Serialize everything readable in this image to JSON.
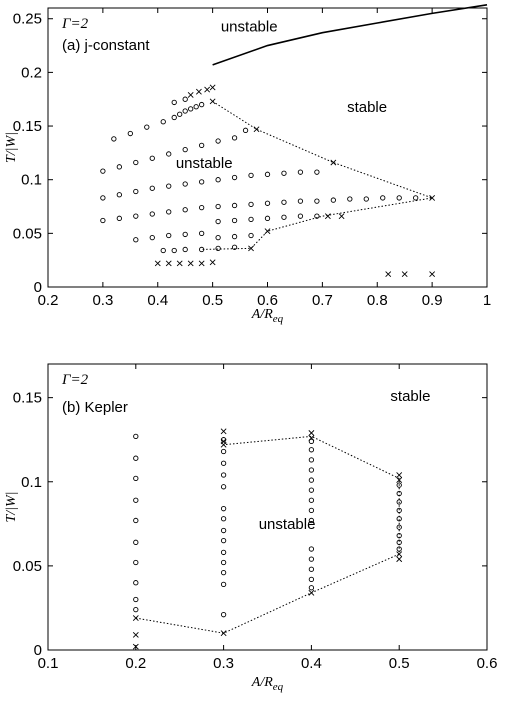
{
  "chart_data": [
    {
      "type": "scatter",
      "title": "",
      "panel_label": "(a) j-constant",
      "gamma_label": "Γ=2",
      "xlabel_main": "A/R",
      "xlabel_sub": "eq",
      "ylabel": "T/|W|",
      "xlim": [
        0.2,
        1.0
      ],
      "ylim": [
        0,
        0.26
      ],
      "xticks": [
        0.2,
        0.3,
        0.4,
        0.5,
        0.6,
        0.7,
        0.8,
        0.9,
        1.0
      ],
      "xtick_labels": [
        "0.2",
        "0.3",
        "0.4",
        "0.5",
        "0.6",
        "0.7",
        "0.8",
        "0.9",
        "1"
      ],
      "yticks": [
        0,
        0.05,
        0.1,
        0.15,
        0.2,
        0.25
      ],
      "ytick_labels": [
        "0",
        "0.05",
        "0.1",
        "0.15",
        "0.2",
        "0.25"
      ],
      "annotations": [
        {
          "text": "unstable",
          "x": 0.515,
          "y": 0.238
        },
        {
          "text": "stable",
          "x": 0.745,
          "y": 0.163
        },
        {
          "text": "unstable",
          "x": 0.433,
          "y": 0.111
        }
      ],
      "boundary_solid": [
        [
          0.5,
          0.207
        ],
        [
          0.6,
          0.225
        ],
        [
          0.7,
          0.237
        ],
        [
          0.8,
          0.246
        ],
        [
          0.9,
          0.255
        ],
        [
          1.0,
          0.263
        ]
      ],
      "boundary_dotted": [
        [
          0.5,
          0.173
        ],
        [
          0.58,
          0.147
        ],
        [
          0.72,
          0.116
        ],
        [
          0.9,
          0.083
        ],
        [
          0.7,
          0.066
        ],
        [
          0.6,
          0.052
        ],
        [
          0.57,
          0.036
        ],
        [
          0.48,
          0.035
        ]
      ],
      "stable_points": [
        {
          "x": 0.3,
          "y": 0.062
        },
        {
          "x": 0.33,
          "y": 0.064
        },
        {
          "x": 0.36,
          "y": 0.066
        },
        {
          "x": 0.39,
          "y": 0.068
        },
        {
          "x": 0.42,
          "y": 0.07
        },
        {
          "x": 0.45,
          "y": 0.072
        },
        {
          "x": 0.48,
          "y": 0.074
        },
        {
          "x": 0.51,
          "y": 0.075
        },
        {
          "x": 0.54,
          "y": 0.076
        },
        {
          "x": 0.57,
          "y": 0.077
        },
        {
          "x": 0.6,
          "y": 0.078
        },
        {
          "x": 0.63,
          "y": 0.079
        },
        {
          "x": 0.66,
          "y": 0.08
        },
        {
          "x": 0.69,
          "y": 0.08
        },
        {
          "x": 0.72,
          "y": 0.081
        },
        {
          "x": 0.75,
          "y": 0.082
        },
        {
          "x": 0.78,
          "y": 0.082
        },
        {
          "x": 0.81,
          "y": 0.083
        },
        {
          "x": 0.84,
          "y": 0.083
        },
        {
          "x": 0.87,
          "y": 0.083
        },
        {
          "x": 0.3,
          "y": 0.083
        },
        {
          "x": 0.33,
          "y": 0.086
        },
        {
          "x": 0.36,
          "y": 0.089
        },
        {
          "x": 0.39,
          "y": 0.092
        },
        {
          "x": 0.42,
          "y": 0.094
        },
        {
          "x": 0.45,
          "y": 0.096
        },
        {
          "x": 0.48,
          "y": 0.098
        },
        {
          "x": 0.51,
          "y": 0.1
        },
        {
          "x": 0.54,
          "y": 0.102
        },
        {
          "x": 0.57,
          "y": 0.104
        },
        {
          "x": 0.6,
          "y": 0.105
        },
        {
          "x": 0.63,
          "y": 0.106
        },
        {
          "x": 0.66,
          "y": 0.107
        },
        {
          "x": 0.69,
          "y": 0.107
        },
        {
          "x": 0.3,
          "y": 0.108
        },
        {
          "x": 0.33,
          "y": 0.112
        },
        {
          "x": 0.36,
          "y": 0.116
        },
        {
          "x": 0.39,
          "y": 0.12
        },
        {
          "x": 0.42,
          "y": 0.124
        },
        {
          "x": 0.45,
          "y": 0.128
        },
        {
          "x": 0.48,
          "y": 0.132
        },
        {
          "x": 0.51,
          "y": 0.136
        },
        {
          "x": 0.54,
          "y": 0.139
        },
        {
          "x": 0.32,
          "y": 0.138
        },
        {
          "x": 0.35,
          "y": 0.143
        },
        {
          "x": 0.38,
          "y": 0.149
        },
        {
          "x": 0.41,
          "y": 0.154
        },
        {
          "x": 0.43,
          "y": 0.158
        },
        {
          "x": 0.44,
          "y": 0.161
        },
        {
          "x": 0.45,
          "y": 0.164
        },
        {
          "x": 0.46,
          "y": 0.166
        },
        {
          "x": 0.47,
          "y": 0.168
        },
        {
          "x": 0.48,
          "y": 0.17
        },
        {
          "x": 0.43,
          "y": 0.172
        },
        {
          "x": 0.45,
          "y": 0.175
        },
        {
          "x": 0.56,
          "y": 0.146
        },
        {
          "x": 0.36,
          "y": 0.044
        },
        {
          "x": 0.39,
          "y": 0.046
        },
        {
          "x": 0.42,
          "y": 0.048
        },
        {
          "x": 0.45,
          "y": 0.049
        },
        {
          "x": 0.48,
          "y": 0.05
        },
        {
          "x": 0.51,
          "y": 0.061
        },
        {
          "x": 0.54,
          "y": 0.062
        },
        {
          "x": 0.57,
          "y": 0.063
        },
        {
          "x": 0.6,
          "y": 0.064
        },
        {
          "x": 0.63,
          "y": 0.065
        },
        {
          "x": 0.66,
          "y": 0.066
        },
        {
          "x": 0.69,
          "y": 0.066
        },
        {
          "x": 0.41,
          "y": 0.034
        },
        {
          "x": 0.43,
          "y": 0.034
        },
        {
          "x": 0.45,
          "y": 0.035
        },
        {
          "x": 0.48,
          "y": 0.035
        },
        {
          "x": 0.51,
          "y": 0.046
        },
        {
          "x": 0.54,
          "y": 0.047
        },
        {
          "x": 0.57,
          "y": 0.048
        },
        {
          "x": 0.51,
          "y": 0.036
        },
        {
          "x": 0.54,
          "y": 0.037
        }
      ],
      "unstable_points": [
        {
          "x": 0.46,
          "y": 0.179
        },
        {
          "x": 0.475,
          "y": 0.182
        },
        {
          "x": 0.49,
          "y": 0.184
        },
        {
          "x": 0.5,
          "y": 0.186
        },
        {
          "x": 0.5,
          "y": 0.173
        },
        {
          "x": 0.58,
          "y": 0.147
        },
        {
          "x": 0.72,
          "y": 0.116
        },
        {
          "x": 0.9,
          "y": 0.083
        },
        {
          "x": 0.71,
          "y": 0.066
        },
        {
          "x": 0.735,
          "y": 0.066
        },
        {
          "x": 0.6,
          "y": 0.052
        },
        {
          "x": 0.57,
          "y": 0.036
        },
        {
          "x": 0.4,
          "y": 0.022
        },
        {
          "x": 0.42,
          "y": 0.022
        },
        {
          "x": 0.44,
          "y": 0.022
        },
        {
          "x": 0.46,
          "y": 0.022
        },
        {
          "x": 0.48,
          "y": 0.022
        },
        {
          "x": 0.5,
          "y": 0.023
        },
        {
          "x": 0.82,
          "y": 0.012
        },
        {
          "x": 0.85,
          "y": 0.012
        },
        {
          "x": 0.9,
          "y": 0.012
        }
      ]
    },
    {
      "type": "scatter",
      "title": "",
      "panel_label": "(b) Kepler",
      "gamma_label": "Γ=2",
      "xlabel_main": "A/R",
      "xlabel_sub": "eq",
      "ylabel": "T/|W|",
      "xlim": [
        0.1,
        0.6
      ],
      "ylim": [
        0,
        0.17
      ],
      "xticks": [
        0.1,
        0.2,
        0.3,
        0.4,
        0.5,
        0.6
      ],
      "xtick_labels": [
        "0.1",
        "0.2",
        "0.3",
        "0.4",
        "0.5",
        "0.6"
      ],
      "yticks": [
        0,
        0.05,
        0.1,
        0.15
      ],
      "ytick_labels": [
        "0",
        "0.05",
        "0.1",
        "0.15"
      ],
      "annotations": [
        {
          "text": "stable",
          "x": 0.49,
          "y": 0.148
        },
        {
          "text": "unstable",
          "x": 0.34,
          "y": 0.072
        }
      ],
      "boundary_dotted": [
        [
          0.2,
          0.019
        ],
        [
          0.3,
          0.01
        ],
        [
          0.4,
          0.034
        ],
        [
          0.5,
          0.057
        ],
        [
          0.5,
          0.102
        ],
        [
          0.4,
          0.127
        ],
        [
          0.3,
          0.122
        ]
      ],
      "stable_points": [
        {
          "x": 0.2,
          "y": 0.127
        },
        {
          "x": 0.2,
          "y": 0.114
        },
        {
          "x": 0.2,
          "y": 0.102
        },
        {
          "x": 0.2,
          "y": 0.089
        },
        {
          "x": 0.2,
          "y": 0.077
        },
        {
          "x": 0.2,
          "y": 0.064
        },
        {
          "x": 0.2,
          "y": 0.052
        },
        {
          "x": 0.2,
          "y": 0.04
        },
        {
          "x": 0.2,
          "y": 0.03
        },
        {
          "x": 0.2,
          "y": 0.024
        },
        {
          "x": 0.3,
          "y": 0.125
        },
        {
          "x": 0.3,
          "y": 0.118
        },
        {
          "x": 0.3,
          "y": 0.111
        },
        {
          "x": 0.3,
          "y": 0.104
        },
        {
          "x": 0.3,
          "y": 0.097
        },
        {
          "x": 0.3,
          "y": 0.084
        },
        {
          "x": 0.3,
          "y": 0.078
        },
        {
          "x": 0.3,
          "y": 0.071
        },
        {
          "x": 0.3,
          "y": 0.065
        },
        {
          "x": 0.3,
          "y": 0.058
        },
        {
          "x": 0.3,
          "y": 0.052
        },
        {
          "x": 0.3,
          "y": 0.046
        },
        {
          "x": 0.3,
          "y": 0.039
        },
        {
          "x": 0.3,
          "y": 0.021
        },
        {
          "x": 0.4,
          "y": 0.124
        },
        {
          "x": 0.4,
          "y": 0.119
        },
        {
          "x": 0.4,
          "y": 0.113
        },
        {
          "x": 0.4,
          "y": 0.107
        },
        {
          "x": 0.4,
          "y": 0.101
        },
        {
          "x": 0.4,
          "y": 0.095
        },
        {
          "x": 0.4,
          "y": 0.089
        },
        {
          "x": 0.4,
          "y": 0.083
        },
        {
          "x": 0.4,
          "y": 0.077
        },
        {
          "x": 0.4,
          "y": 0.06
        },
        {
          "x": 0.4,
          "y": 0.054
        },
        {
          "x": 0.4,
          "y": 0.048
        },
        {
          "x": 0.4,
          "y": 0.042
        },
        {
          "x": 0.4,
          "y": 0.037
        },
        {
          "x": 0.5,
          "y": 0.098
        },
        {
          "x": 0.5,
          "y": 0.093
        },
        {
          "x": 0.5,
          "y": 0.088
        },
        {
          "x": 0.5,
          "y": 0.083
        },
        {
          "x": 0.5,
          "y": 0.078
        },
        {
          "x": 0.5,
          "y": 0.073
        },
        {
          "x": 0.5,
          "y": 0.068
        },
        {
          "x": 0.5,
          "y": 0.064
        },
        {
          "x": 0.5,
          "y": 0.06
        }
      ],
      "unstable_points": [
        {
          "x": 0.2,
          "y": 0.019
        },
        {
          "x": 0.2,
          "y": 0.009
        },
        {
          "x": 0.2,
          "y": 0.002
        },
        {
          "x": 0.3,
          "y": 0.13
        },
        {
          "x": 0.3,
          "y": 0.124
        },
        {
          "x": 0.3,
          "y": 0.122
        },
        {
          "x": 0.3,
          "y": 0.01
        },
        {
          "x": 0.4,
          "y": 0.129
        },
        {
          "x": 0.4,
          "y": 0.126
        },
        {
          "x": 0.4,
          "y": 0.034
        },
        {
          "x": 0.5,
          "y": 0.104
        },
        {
          "x": 0.5,
          "y": 0.101
        },
        {
          "x": 0.5,
          "y": 0.057
        },
        {
          "x": 0.5,
          "y": 0.054
        }
      ]
    }
  ]
}
